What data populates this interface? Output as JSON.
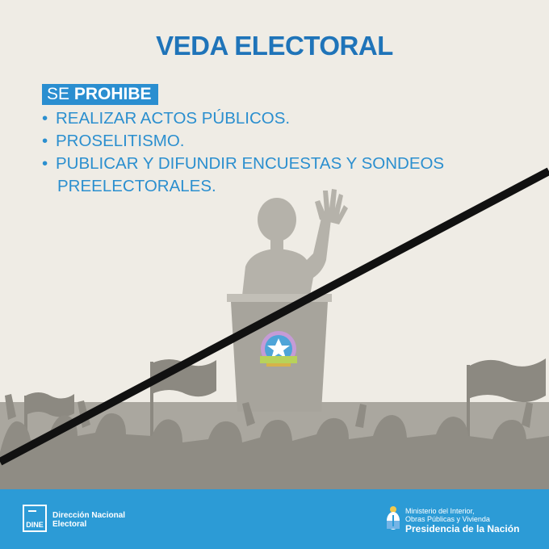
{
  "header": {
    "title": "VEDA ELECTORAL"
  },
  "prohibition": {
    "label_prefix": "SE ",
    "label_bold": "PROHIBE",
    "items": [
      "REALIZAR ACTOS PÚBLICOS.",
      "PROSELITISMO.",
      "PUBLICAR Y DIFUNDIR ENCUESTAS Y SONDEOS",
      "PREELECTORALES."
    ]
  },
  "footer": {
    "dine_logo_text": "DINE",
    "dne_line1": "Dirección Nacional",
    "dne_line2": "Electoral",
    "ministry_line1": "Ministerio del Interior,",
    "ministry_line2": "Obras Públicas y Vivienda",
    "presidencia": "Presidencia de la Nación"
  },
  "colors": {
    "background": "#efece5",
    "title": "#1f74b9",
    "badge": "#2a8ed0",
    "list_text": "#2b8fcf",
    "silhouette_light": "#b4b1a9",
    "silhouette_dark": "#8f8c84",
    "ground": "#a9a69e",
    "strike_line": "#111111",
    "footer": "#2c9bd6"
  },
  "icons": {
    "seal": "argentina-electoral-seal-icon",
    "strike": "diagonal-strike-line",
    "dine": "dine-logo-icon",
    "shield": "argentina-coat-of-arms-icon"
  }
}
